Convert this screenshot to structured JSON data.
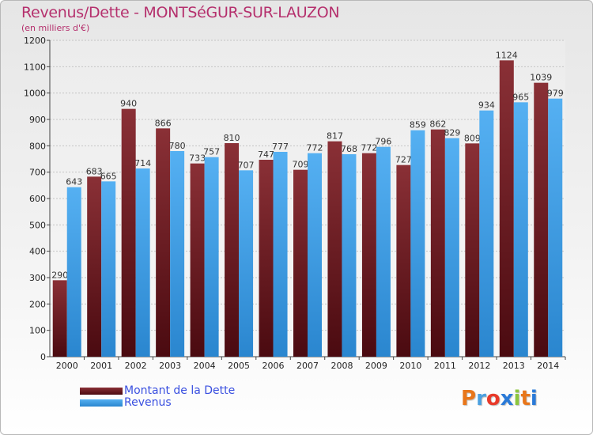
{
  "chart_data": {
    "type": "bar",
    "title": "Revenus/Dette - MONTSéGUR-SUR-LAUZON",
    "subtitle": "(en milliers d'€)",
    "categories": [
      "2000",
      "2001",
      "2002",
      "2003",
      "2004",
      "2005",
      "2006",
      "2007",
      "2008",
      "2009",
      "2010",
      "2011",
      "2012",
      "2013",
      "2014"
    ],
    "series": [
      {
        "name": "Montant de la Dette",
        "values": [
          290,
          683,
          940,
          866,
          733,
          810,
          747,
          709,
          817,
          772,
          727,
          862,
          809,
          1124,
          1039
        ],
        "color": "#7a1e26"
      },
      {
        "name": "Revenus",
        "values": [
          643,
          665,
          714,
          780,
          757,
          707,
          777,
          772,
          768,
          796,
          859,
          829,
          934,
          965,
          979
        ],
        "color": "#3f9fe6"
      }
    ],
    "ylim": [
      0,
      1200
    ],
    "yticks": [
      0,
      100,
      200,
      300,
      400,
      500,
      600,
      700,
      800,
      900,
      1000,
      1100,
      1200
    ],
    "grid": true,
    "legend_position": "bottom-left"
  },
  "logo": {
    "text": "Proxiti",
    "colors": [
      "#e8761a",
      "#4aa0e0",
      "#e83a2a",
      "#2a7ad8",
      "#8cc63e",
      "#e8761a",
      "#2a7ad8"
    ]
  }
}
